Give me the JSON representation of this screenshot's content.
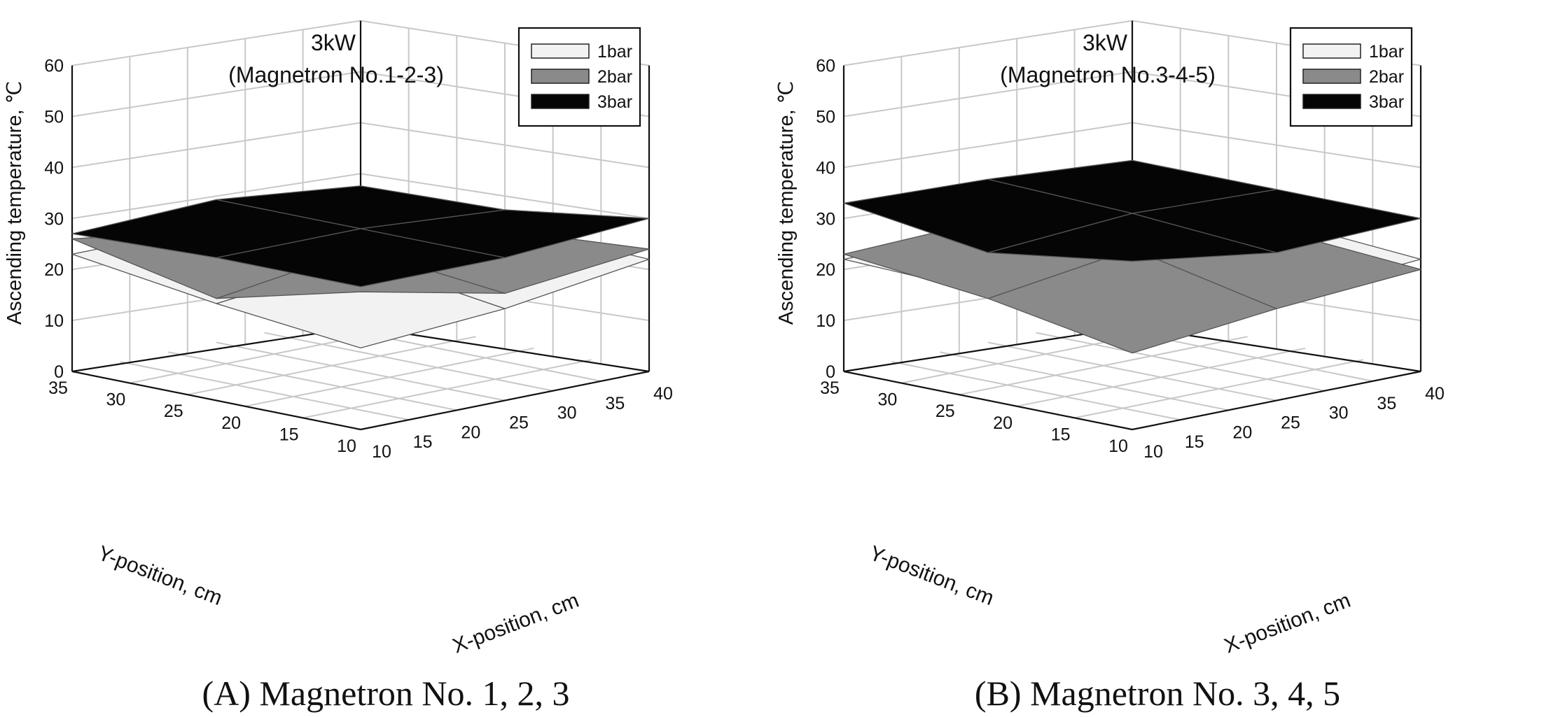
{
  "chart_data": [
    {
      "type": "surface3d",
      "title": "3kW",
      "subtitle": "(Magnetron No.1-2-3)",
      "caption": "(A) Magnetron No. 1, 2, 3",
      "zlabel": "Ascending temperature, ℃",
      "xlabel": "X-position, cm",
      "ylabel": "Y-position, cm",
      "zlim": [
        0,
        60
      ],
      "z_ticks": [
        "0",
        "10",
        "20",
        "30",
        "40",
        "50",
        "60"
      ],
      "x_ticks": [
        "10",
        "15",
        "20",
        "25",
        "30",
        "35",
        "40"
      ],
      "y_ticks": [
        "10",
        "15",
        "20",
        "25",
        "30",
        "35"
      ],
      "x": [
        10,
        25,
        40
      ],
      "y": [
        10,
        22.5,
        35
      ],
      "legend": [
        {
          "label": "1bar",
          "color": "#f2f2f2"
        },
        {
          "label": "2bar",
          "color": "#8a8a8a"
        },
        {
          "label": "3bar",
          "color": "#050505"
        }
      ],
      "series": [
        {
          "name": "1bar",
          "z": [
            [
              16,
              18,
              22
            ],
            [
              19,
              22,
              23
            ],
            [
              23,
              23,
              23
            ]
          ]
        },
        {
          "name": "2bar",
          "z": [
            [
              27,
              21,
              24
            ],
            [
              20,
              24,
              22
            ],
            [
              26,
              22,
              22
            ]
          ]
        },
        {
          "name": "3bar",
          "z": [
            [
              28,
              28,
              30
            ],
            [
              28,
              28,
              26
            ],
            [
              27,
              28,
              25
            ]
          ]
        }
      ]
    },
    {
      "type": "surface3d",
      "title": "3kW",
      "subtitle": "(Magnetron No.3-4-5)",
      "caption": "(B) Magnetron No. 3, 4, 5",
      "zlabel": "Ascending temperature, ℃",
      "xlabel": "X-position, cm",
      "ylabel": "Y-position, cm",
      "zlim": [
        0,
        60
      ],
      "z_ticks": [
        "0",
        "10",
        "20",
        "30",
        "40",
        "50",
        "60"
      ],
      "x_ticks": [
        "10",
        "15",
        "20",
        "25",
        "30",
        "35",
        "40"
      ],
      "y_ticks": [
        "10",
        "15",
        "20",
        "25",
        "30",
        "35"
      ],
      "x": [
        10,
        25,
        40
      ],
      "y": [
        10,
        22.5,
        35
      ],
      "legend": [
        {
          "label": "1bar",
          "color": "#f2f2f2"
        },
        {
          "label": "2bar",
          "color": "#8a8a8a"
        },
        {
          "label": "3bar",
          "color": "#050505"
        }
      ],
      "series": [
        {
          "name": "1bar",
          "z": [
            [
              18,
              20,
              22
            ],
            [
              21,
              23,
              24
            ],
            [
              22,
              22,
              22
            ]
          ]
        },
        {
          "name": "2bar",
          "z": [
            [
              15,
              18,
              20
            ],
            [
              20,
              24,
              22
            ],
            [
              23,
              24,
              23
            ]
          ]
        },
        {
          "name": "3bar",
          "z": [
            [
              33,
              29,
              30
            ],
            [
              29,
              31,
              30
            ],
            [
              33,
              32,
              30
            ]
          ]
        }
      ]
    }
  ]
}
